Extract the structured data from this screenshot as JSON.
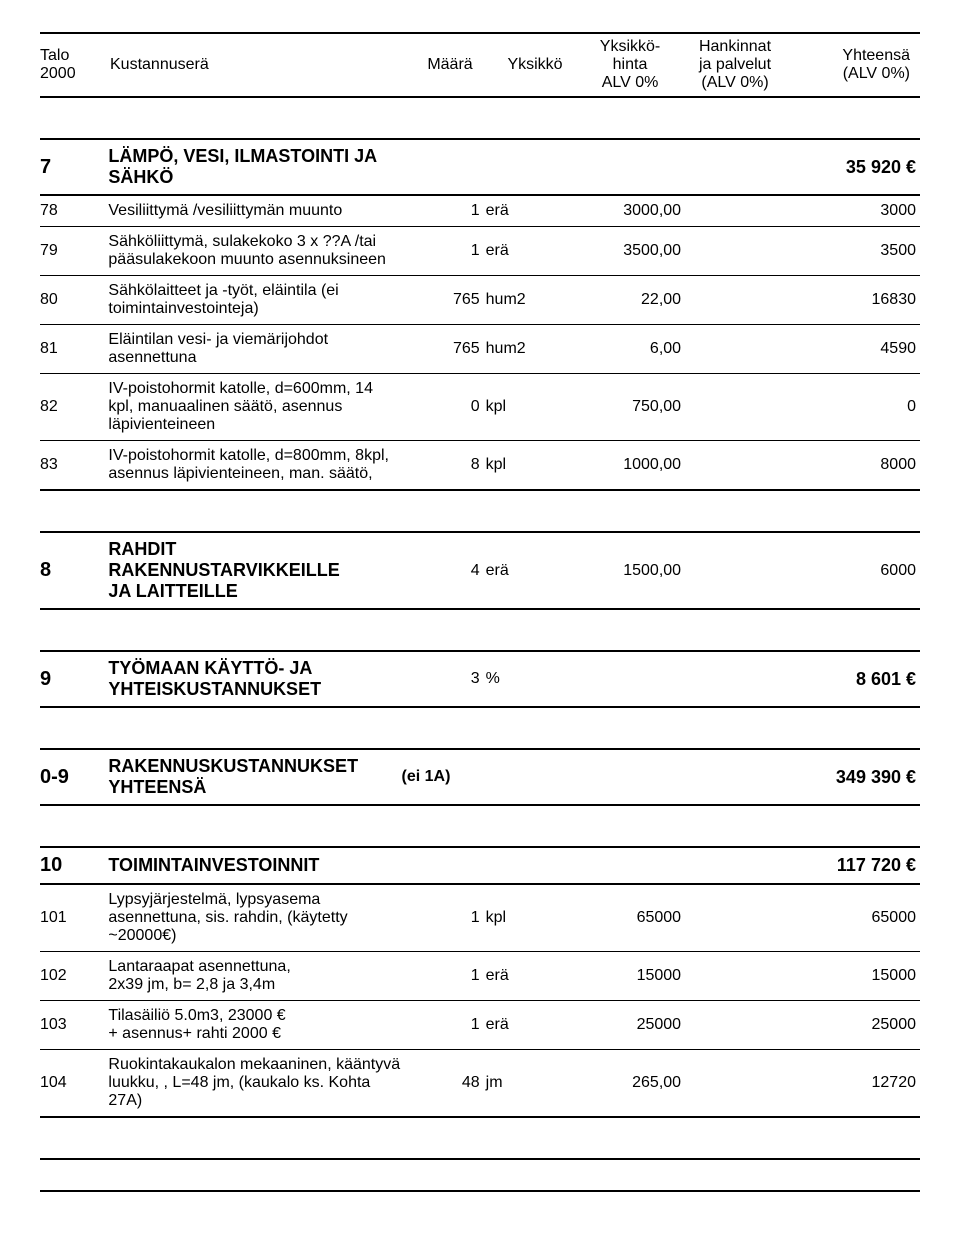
{
  "header": {
    "talo1": "Talo",
    "talo2": "2000",
    "kust": "Kustannuserä",
    "maara": "Määrä",
    "yks": "Yksikkö",
    "hinta1": "Yksikkö-",
    "hinta2": "hinta",
    "hinta3": "ALV 0%",
    "hank1": "Hankinnat",
    "hank2": "ja palvelut",
    "hank3": "(ALV 0%)",
    "yht1": "Yhteensä",
    "yht2": "(ALV 0%)"
  },
  "s7": {
    "code": "7",
    "title": "LÄMPÖ, VESI, ILMASTOINTI JA SÄHKÖ",
    "total": "35 920 €",
    "rows": [
      {
        "code": "78",
        "desc": "Vesiliittymä /vesiliittymän muunto",
        "maara": "1",
        "yks": "erä",
        "hinta": "3000,00",
        "tot": "3000"
      },
      {
        "code": "79",
        "desc": "Sähköliittymä, sulakekoko 3 x ??A /tai pääsulakekoon muunto asennuksineen",
        "maara": "1",
        "yks": "erä",
        "hinta": "3500,00",
        "tot": "3500"
      },
      {
        "code": "80",
        "desc": "Sähkölaitteet ja -työt, eläintila (ei toimintainvestointeja)",
        "maara": "765",
        "yks": "hum2",
        "hinta": "22,00",
        "tot": "16830"
      },
      {
        "code": "81",
        "desc": "Eläintilan vesi- ja viemärijohdot asennettuna",
        "maara": "765",
        "yks": "hum2",
        "hinta": "6,00",
        "tot": "4590"
      },
      {
        "code": "82",
        "desc": "IV-poistohormit katolle, d=600mm, 14 kpl, manuaalinen säätö, asennus läpivienteineen",
        "maara": "0",
        "yks": "kpl",
        "hinta": "750,00",
        "tot": "0"
      },
      {
        "code": "83",
        "desc": "IV-poistohormit katolle, d=800mm, 8kpl, asennus läpivienteineen, man. säätö,",
        "maara": "8",
        "yks": "kpl",
        "hinta": "1000,00",
        "tot": "8000"
      }
    ]
  },
  "s8": {
    "code": "8",
    "title1": "RAHDIT RAKENNUSTARVIKKEILLE",
    "title2": "JA LAITTEILLE",
    "maara": "4",
    "yks": "erä",
    "hinta": "1500,00",
    "tot": "6000"
  },
  "s9": {
    "code": "9",
    "title1": "TYÖMAAN KÄYTTÖ- JA",
    "title2": "YHTEISKUSTANNUKSET",
    "maara": "3",
    "yks": "%",
    "tot": "8 601 €"
  },
  "s09": {
    "code": "0-9",
    "title1": "RAKENNUSKUSTANNUKSET",
    "title2": "YHTEENSÄ",
    "note": "(ei 1A)",
    "tot": "349 390 €"
  },
  "s10": {
    "code": "10",
    "title": "TOIMINTAINVESTOINNIT",
    "total": "117 720 €",
    "rows": [
      {
        "code": "101",
        "desc": "Lypsyjärjestelmä, lypsyasema asennettuna, sis. rahdin, (käytetty ~20000€)",
        "maara": "1",
        "yks": "kpl",
        "hinta": "65000",
        "tot": "65000"
      },
      {
        "code": "102",
        "desc": "Lantaraapat asennettuna,\n2x39 jm, b= 2,8 ja 3,4m",
        "maara": "1",
        "yks": "erä",
        "hinta": "15000",
        "tot": "15000"
      },
      {
        "code": "103",
        "desc": "Tilasäiliö 5.0m3, 23000 €\n+ asennus+ rahti 2000 €",
        "maara": "1",
        "yks": "erä",
        "hinta": "25000",
        "tot": "25000"
      },
      {
        "code": "104",
        "desc": "Ruokintakaukalon mekaaninen, kääntyvä luukku, , L=48 jm, (kaukalo ks. Kohta 27A)",
        "maara": "48",
        "yks": "jm",
        "hinta": "265,00",
        "tot": "12720"
      }
    ]
  }
}
